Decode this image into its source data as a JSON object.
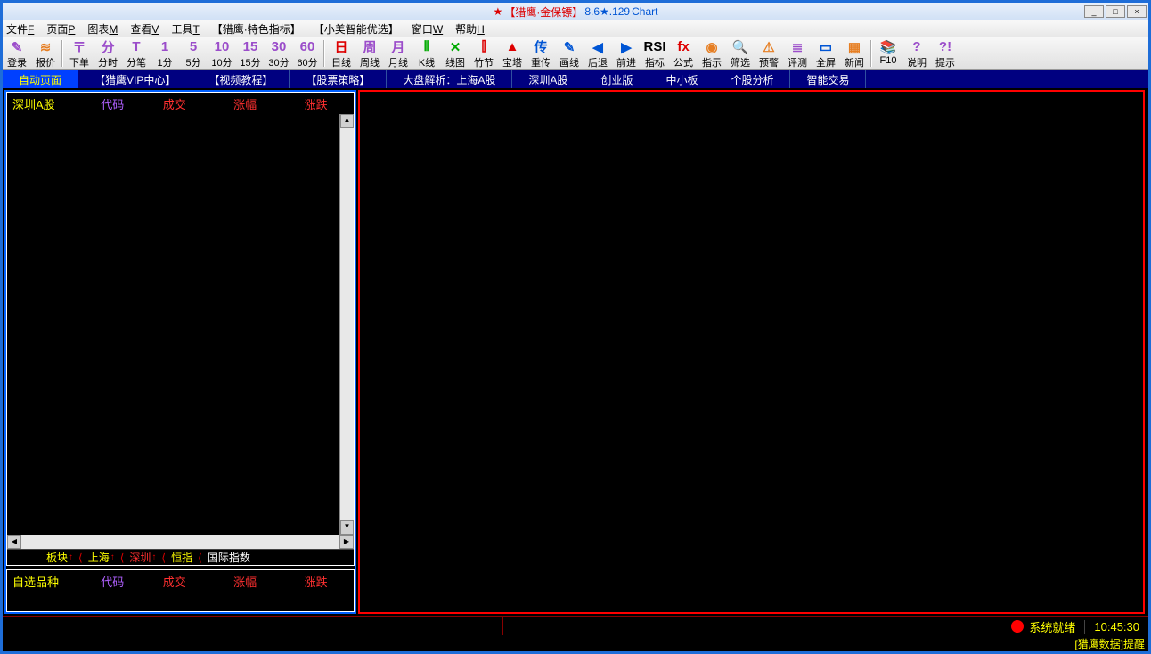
{
  "title": {
    "star": "★",
    "name": "【猎鹰·金保镖】",
    "version": "8.6★.129",
    "suffix": "Chart"
  },
  "window_controls": {
    "min": "_",
    "max": "□",
    "close": "×"
  },
  "menus": [
    {
      "label": "文件",
      "accel": "F"
    },
    {
      "label": "页面",
      "accel": "P"
    },
    {
      "label": "图表",
      "accel": "M"
    },
    {
      "label": "查看",
      "accel": "V"
    },
    {
      "label": "工具",
      "accel": "T"
    },
    {
      "label": "【猎鹰·特色指标】",
      "accel": ""
    },
    {
      "label": "【小美智能优选】",
      "accel": ""
    },
    {
      "label": "窗口",
      "accel": "W"
    },
    {
      "label": "帮助",
      "accel": "H"
    }
  ],
  "toolbar": [
    {
      "icon": "✎",
      "label": "登录",
      "color": "purple"
    },
    {
      "icon": "≋",
      "label": "报价",
      "color": "orange"
    },
    {
      "sep": true
    },
    {
      "icon": "〒",
      "label": "下单",
      "color": "purple"
    },
    {
      "icon": "分",
      "label": "分时",
      "color": "purple"
    },
    {
      "icon": "T",
      "label": "分笔",
      "color": "purple"
    },
    {
      "icon": "1",
      "label": "1分",
      "color": "purple"
    },
    {
      "icon": "5",
      "label": "5分",
      "color": "purple"
    },
    {
      "icon": "10",
      "label": "10分",
      "color": "purple"
    },
    {
      "icon": "15",
      "label": "15分",
      "color": "purple"
    },
    {
      "icon": "30",
      "label": "30分",
      "color": "purple"
    },
    {
      "icon": "60",
      "label": "60分",
      "color": "purple"
    },
    {
      "sep": true
    },
    {
      "icon": "日",
      "label": "日线",
      "color": "red"
    },
    {
      "icon": "周",
      "label": "周线",
      "color": "purple"
    },
    {
      "icon": "月",
      "label": "月线",
      "color": "purple"
    },
    {
      "icon": "⫴",
      "label": "K线",
      "color": "green"
    },
    {
      "icon": "✕",
      "label": "线图",
      "color": "green"
    },
    {
      "icon": "⫿",
      "label": "竹节",
      "color": "red"
    },
    {
      "icon": "▲",
      "label": "宝塔",
      "color": "red"
    },
    {
      "icon": "传",
      "label": "重传",
      "color": "blue"
    },
    {
      "icon": "✎",
      "label": "画线",
      "color": "blue"
    },
    {
      "icon": "◀",
      "label": "后退",
      "color": "blue"
    },
    {
      "icon": "▶",
      "label": "前进",
      "color": "blue"
    },
    {
      "icon": "RSI",
      "label": "指标",
      "color": "black"
    },
    {
      "icon": "fx",
      "label": "公式",
      "color": "red"
    },
    {
      "icon": "◉",
      "label": "指示",
      "color": "orange"
    },
    {
      "icon": "🔍",
      "label": "筛选",
      "color": "green"
    },
    {
      "icon": "⚠",
      "label": "预警",
      "color": "orange"
    },
    {
      "icon": "≣",
      "label": "评测",
      "color": "purple"
    },
    {
      "icon": "▭",
      "label": "全屏",
      "color": "blue"
    },
    {
      "icon": "▦",
      "label": "新闻",
      "color": "orange"
    },
    {
      "sep": true
    },
    {
      "icon": "📚",
      "label": "F10",
      "color": "orange"
    },
    {
      "icon": "?",
      "label": "说明",
      "color": "purple"
    },
    {
      "icon": "?!",
      "label": "提示",
      "color": "purple"
    }
  ],
  "tabs": [
    {
      "label": "自动页面",
      "active": true
    },
    {
      "label": "【猎鹰VIP中心】"
    },
    {
      "label": "【视频教程】"
    },
    {
      "label": "【股票策略】"
    },
    {
      "label": "大盘解析：上海A股"
    },
    {
      "label": "深圳A股"
    },
    {
      "label": "创业版"
    },
    {
      "label": "中小板"
    },
    {
      "label": "个股分析"
    },
    {
      "label": "智能交易"
    }
  ],
  "left_panel": {
    "top_header": {
      "name": "深圳A股",
      "code": "代码",
      "cols": [
        "成交",
        "涨幅",
        "涨跌"
      ]
    },
    "bottom_tabs": [
      {
        "label": "板块",
        "arrow": true,
        "cls": "bt-yellow"
      },
      {
        "label": "上海",
        "arrow": true,
        "cls": "bt-yellow"
      },
      {
        "label": "深圳",
        "arrow": true,
        "cls": "bt-red"
      },
      {
        "label": "恒指",
        "arrow": false,
        "cls": "bt-yellow"
      },
      {
        "label": "国际指数",
        "arrow": false,
        "cls": "bt-white"
      }
    ],
    "bottom_header": {
      "name": "自选品种",
      "code": "代码",
      "cols": [
        "成交",
        "涨幅",
        "涨跌"
      ]
    }
  },
  "status": {
    "system": "系统就绪",
    "time": "10:45:30",
    "ticker": "[猎鹰数据]提醒"
  },
  "colors": {
    "window_border": "#1e6dd8",
    "tab_bg": "#000080",
    "tab_active": "#0040ff",
    "left_border": "#0060ff",
    "right_border": "#ff0000",
    "status_border": "#800"
  }
}
